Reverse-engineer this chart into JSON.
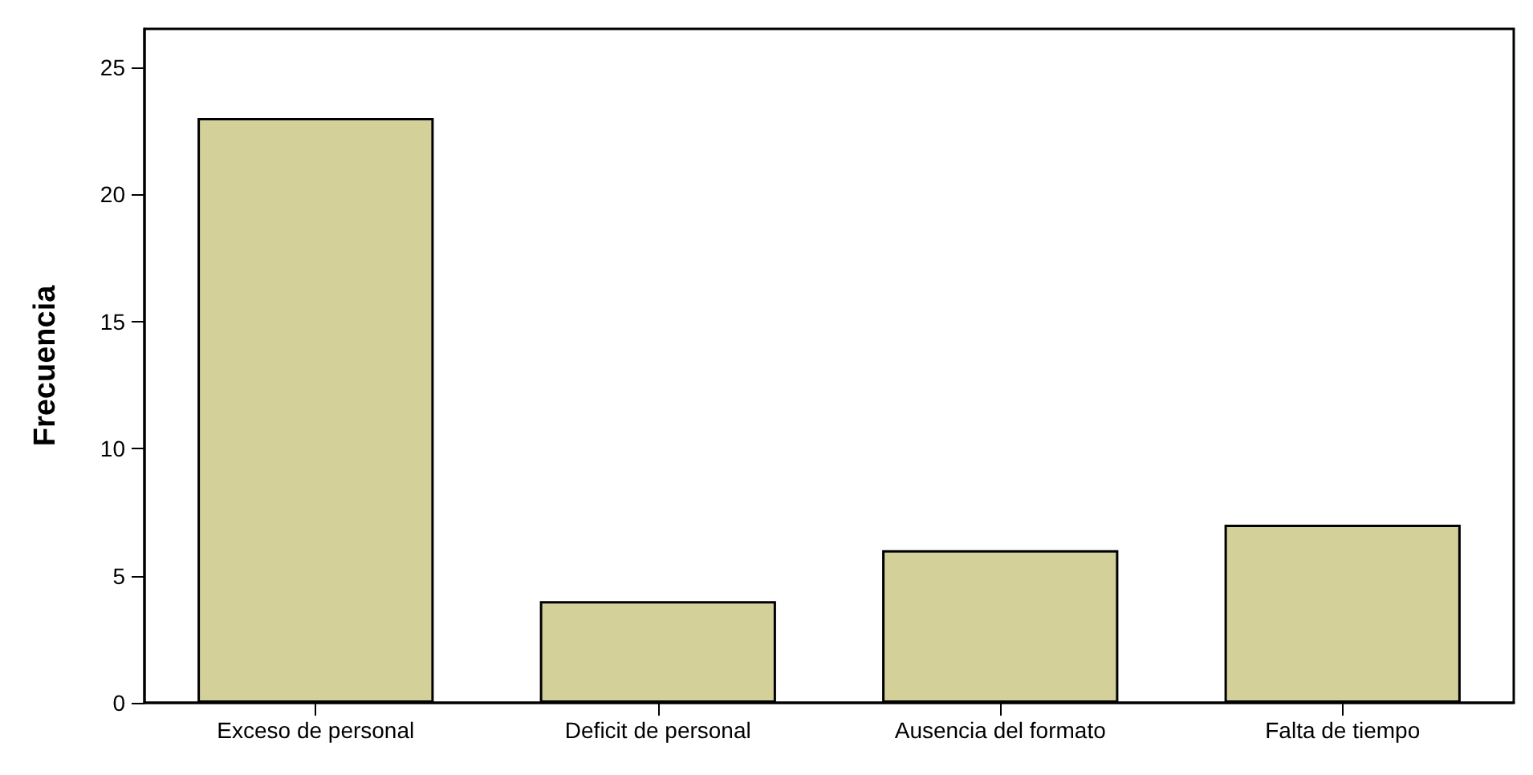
{
  "chart_data": {
    "type": "bar",
    "ylabel": "Frecuencia",
    "categories": [
      "Exceso de personal",
      "Deficit de personal",
      "Ausencia del formato",
      "Falta de tiempo"
    ],
    "values": [
      23,
      4,
      6,
      7
    ],
    "color": "#d3d09a",
    "ylim": [
      0,
      26.5
    ],
    "yticks": [
      0,
      5,
      10,
      15,
      20,
      25
    ],
    "grid": false
  }
}
